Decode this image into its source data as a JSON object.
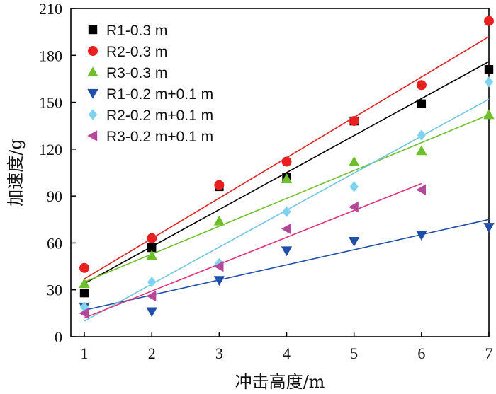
{
  "chart_data": {
    "type": "scatter",
    "xlabel": "冲击高度/m",
    "ylabel": "加速度/g",
    "xlim": [
      0.8,
      7
    ],
    "ylim": [
      0,
      210
    ],
    "xticks": [
      1,
      2,
      3,
      4,
      5,
      6,
      7
    ],
    "yticks": [
      0,
      30,
      60,
      90,
      120,
      150,
      180,
      210
    ],
    "grid": false,
    "legend_position": "top-left",
    "series": [
      {
        "name": "R1-0.3 m",
        "marker": "square",
        "color": "#000000",
        "x": [
          1,
          2,
          3,
          4,
          5,
          6,
          7
        ],
        "y": [
          28,
          57,
          96,
          102,
          138,
          149,
          171
        ],
        "fit": {
          "x": [
            1,
            7
          ],
          "y": [
            34,
            176
          ],
          "color": "#000000"
        }
      },
      {
        "name": "R2-0.3 m",
        "marker": "circle",
        "color": "#e8201f",
        "x": [
          1,
          2,
          3,
          4,
          5,
          6,
          7
        ],
        "y": [
          44,
          63,
          97,
          112,
          138,
          161,
          202
        ],
        "fit": {
          "x": [
            1,
            7
          ],
          "y": [
            37,
            192
          ],
          "color": "#e02020"
        }
      },
      {
        "name": "R3-0.3 m",
        "marker": "triangle-up",
        "color": "#6fbf2a",
        "x": [
          1,
          2,
          3,
          4,
          5,
          6,
          7
        ],
        "y": [
          34,
          52,
          74,
          101,
          112,
          119,
          142
        ],
        "fit": {
          "x": [
            1,
            7
          ],
          "y": [
            35,
            142
          ],
          "color": "#6fbf2a"
        }
      },
      {
        "name": "R1-0.2 m+0.1 m",
        "marker": "triangle-down",
        "color": "#1f4fa8",
        "x": [
          1,
          2,
          3,
          4,
          5,
          6,
          7
        ],
        "y": [
          19,
          16,
          36,
          55,
          61,
          65,
          70
        ],
        "fit": {
          "x": [
            1,
            7
          ],
          "y": [
            17,
            75
          ],
          "color": "#1f4fa8"
        }
      },
      {
        "name": "R2-0.2 m+0.1 m",
        "marker": "diamond",
        "color": "#7fd3ee",
        "x": [
          1,
          2,
          3,
          4,
          5,
          6,
          7
        ],
        "y": [
          19,
          35,
          47,
          80,
          96,
          129,
          163
        ],
        "fit": {
          "x": [
            1,
            7
          ],
          "y": [
            10,
            152
          ],
          "color": "#6fc6e0"
        }
      },
      {
        "name": "R3-0.2 m+0.1 m",
        "marker": "triangle-left",
        "color": "#b5489a",
        "x": [
          1,
          2,
          3,
          4,
          5,
          6
        ],
        "y": [
          15,
          26,
          45,
          69,
          83,
          94
        ],
        "fit": {
          "x": [
            1,
            6
          ],
          "y": [
            12,
            98
          ],
          "color": "#e0307a"
        }
      }
    ]
  }
}
